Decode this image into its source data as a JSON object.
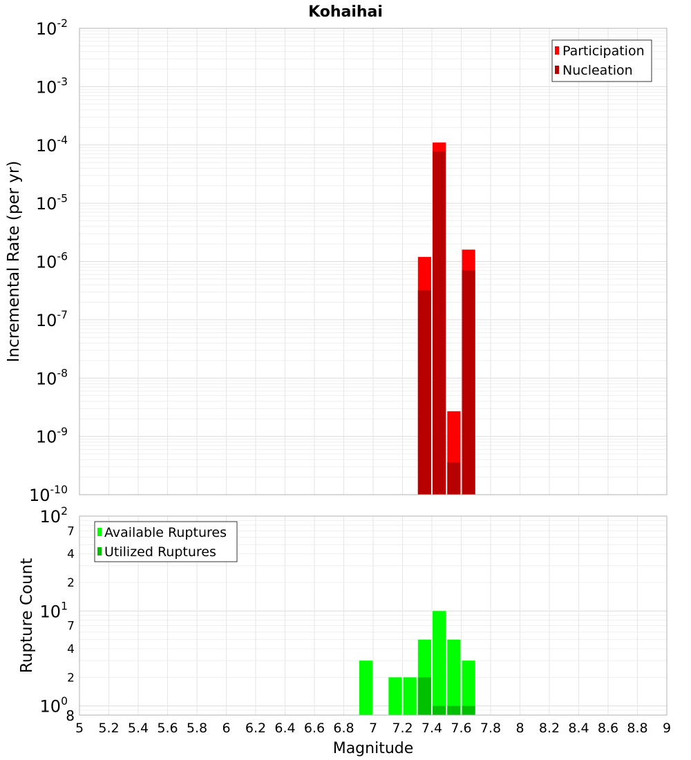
{
  "title": "Kohaihai",
  "xlabel": "Magnitude",
  "chart_data": [
    {
      "type": "bar",
      "title": "Kohaihai",
      "xlabel": "Magnitude",
      "ylabel": "Incremental Rate (per yr)",
      "yscale": "log",
      "xlim": [
        5,
        9
      ],
      "ylim": [
        1e-10,
        0.01
      ],
      "grid": true,
      "legend_position": "top-right",
      "x": [
        7.35,
        7.45,
        7.55,
        7.65
      ],
      "series": [
        {
          "name": "Participation",
          "color": "#ff0000",
          "values": [
            1.2e-06,
            0.00011,
            2.7e-09,
            1.6e-06
          ]
        },
        {
          "name": "Nucleation",
          "color": "#b80000",
          "values": [
            3.2e-07,
            7.8e-05,
            3.6e-10,
            7.1e-07
          ]
        }
      ]
    },
    {
      "type": "bar",
      "xlabel": "Magnitude",
      "ylabel": "Rupture Count",
      "yscale": "log",
      "xlim": [
        5,
        9
      ],
      "ylim": [
        0.8,
        100
      ],
      "grid": true,
      "legend_position": "top-left",
      "x": [
        6.95,
        7.15,
        7.25,
        7.35,
        7.45,
        7.55,
        7.65
      ],
      "series": [
        {
          "name": "Available Ruptures",
          "color": "#00ff00",
          "values": [
            3,
            2,
            2,
            5,
            10,
            5,
            3
          ]
        },
        {
          "name": "Utilized Ruptures",
          "color": "#00c000",
          "values": [
            0,
            0,
            0,
            2,
            1,
            1,
            1
          ]
        }
      ]
    }
  ]
}
